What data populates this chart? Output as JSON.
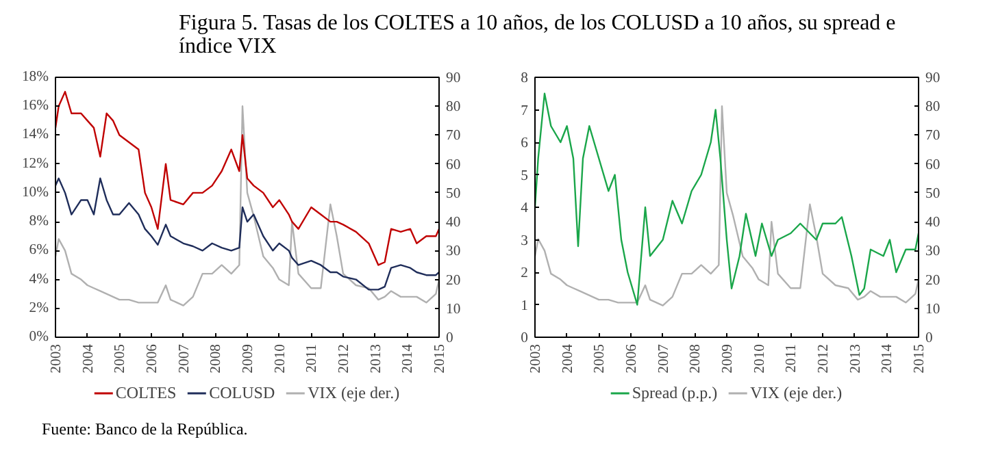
{
  "chart_data": [
    {
      "type": "line",
      "title": "Figura 5. Tasas de los COLTES a 10 años, de los COLUSD a 10 años, su spread e índice VIX",
      "annotations": [
        "Fuente: Banco de la República."
      ],
      "xlim": [
        2003,
        2015
      ],
      "xticks": [
        2003,
        2004,
        2005,
        2006,
        2007,
        2008,
        2009,
        2010,
        2011,
        2012,
        2013,
        2014,
        2015
      ],
      "ylim": [
        0,
        18
      ],
      "yticks": [
        {
          "value": 0,
          "label": "0%"
        },
        {
          "value": 2,
          "label": "2%"
        },
        {
          "value": 4,
          "label": "4%"
        },
        {
          "value": 6,
          "label": "6%"
        },
        {
          "value": 8,
          "label": "8%"
        },
        {
          "value": 10,
          "label": "10%"
        },
        {
          "value": 12,
          "label": "12%"
        },
        {
          "value": 14,
          "label": "14%"
        },
        {
          "value": 16,
          "label": "16%"
        },
        {
          "value": 18,
          "label": "18%"
        }
      ],
      "y2lim": [
        0,
        90
      ],
      "y2ticks": [
        0,
        10,
        20,
        30,
        40,
        50,
        60,
        70,
        80,
        90
      ],
      "grid": false,
      "legend": "bottom",
      "x": [
        2003.0,
        2003.1,
        2003.3,
        2003.5,
        2003.8,
        2004.0,
        2004.2,
        2004.4,
        2004.6,
        2004.8,
        2005.0,
        2005.3,
        2005.6,
        2005.8,
        2006.0,
        2006.2,
        2006.45,
        2006.6,
        2007.0,
        2007.3,
        2007.6,
        2007.9,
        2008.2,
        2008.5,
        2008.75,
        2008.85,
        2009.0,
        2009.2,
        2009.5,
        2009.8,
        2010.0,
        2010.3,
        2010.4,
        2010.6,
        2011.0,
        2011.3,
        2011.6,
        2011.8,
        2012.0,
        2012.4,
        2012.8,
        2013.1,
        2013.3,
        2013.5,
        2013.8,
        2014.1,
        2014.3,
        2014.6,
        2014.9,
        2015.0
      ],
      "series": [
        {
          "name": "COLTES",
          "color": "#c00000",
          "values": [
            14.5,
            16,
            17,
            15.5,
            15.5,
            15,
            14.5,
            12.5,
            15.5,
            15,
            14,
            13.5,
            13,
            10,
            9,
            7.5,
            12,
            9.5,
            9.2,
            10,
            10,
            10.5,
            11.5,
            13,
            11.5,
            14,
            11,
            10.5,
            10,
            9,
            9.5,
            8.5,
            8,
            7.5,
            9,
            8.5,
            8,
            8,
            7.8,
            7.3,
            6.5,
            5,
            5.2,
            7.5,
            7.3,
            7.5,
            6.5,
            7,
            7,
            7.5
          ]
        },
        {
          "name": "COLUSD",
          "color": "#1f2d5a",
          "values": [
            10.5,
            11,
            10,
            8.5,
            9.5,
            9.5,
            8.5,
            11,
            9.5,
            8.5,
            8.5,
            9.3,
            8.5,
            7.5,
            7,
            6.4,
            7.8,
            7,
            6.5,
            6.3,
            6,
            6.5,
            6.2,
            6,
            6.2,
            9,
            8,
            8.5,
            7,
            6,
            6.5,
            6,
            5.5,
            5,
            5.3,
            5,
            4.5,
            4.5,
            4.2,
            4,
            3.3,
            3.3,
            3.5,
            4.8,
            5,
            4.8,
            4.5,
            4.3,
            4.3,
            4.5
          ]
        },
        {
          "name": "VIX (eje der.)",
          "color": "#b0b0b0",
          "axis": "y2",
          "values": [
            28,
            34,
            30,
            22,
            20,
            18,
            17,
            16,
            15,
            14,
            13,
            13,
            12,
            12,
            12,
            12,
            18,
            13,
            11,
            14,
            22,
            22,
            25,
            22,
            25,
            80,
            50,
            42,
            28,
            24,
            20,
            18,
            40,
            22,
            17,
            17,
            46,
            35,
            22,
            18,
            17,
            13,
            14,
            16,
            14,
            14,
            14,
            12,
            15,
            20
          ]
        }
      ]
    },
    {
      "type": "line",
      "xlim": [
        2003,
        2015
      ],
      "xticks": [
        2003,
        2004,
        2005,
        2006,
        2007,
        2008,
        2009,
        2010,
        2011,
        2012,
        2013,
        2014,
        2015
      ],
      "ylim": [
        0,
        8
      ],
      "yticks": [
        0,
        1,
        2,
        3,
        4,
        5,
        6,
        7,
        8
      ],
      "y2lim": [
        0,
        90
      ],
      "y2ticks": [
        0,
        10,
        20,
        30,
        40,
        50,
        60,
        70,
        80,
        90
      ],
      "grid": false,
      "legend": "bottom",
      "series": [
        {
          "name": "Spread (p.p.)",
          "color": "#1aa64a",
          "x": [
            2003.0,
            2003.1,
            2003.3,
            2003.5,
            2003.8,
            2004.0,
            2004.2,
            2004.35,
            2004.5,
            2004.7,
            2005.0,
            2005.3,
            2005.5,
            2005.7,
            2005.9,
            2006.2,
            2006.45,
            2006.6,
            2007.0,
            2007.3,
            2007.6,
            2007.9,
            2008.2,
            2008.5,
            2008.65,
            2008.8,
            2009.0,
            2009.15,
            2009.4,
            2009.6,
            2009.9,
            2010.1,
            2010.4,
            2010.6,
            2011.0,
            2011.3,
            2011.6,
            2011.8,
            2012.0,
            2012.4,
            2012.6,
            2012.9,
            2013.15,
            2013.3,
            2013.5,
            2013.9,
            2014.1,
            2014.3,
            2014.6,
            2014.9,
            2015.0
          ],
          "values": [
            4,
            5.5,
            7.5,
            6.5,
            6,
            6.5,
            5.5,
            2.8,
            5.5,
            6.5,
            5.5,
            4.5,
            5,
            3,
            2,
            1,
            4,
            2.5,
            3,
            4.2,
            3.5,
            4.5,
            5,
            6,
            7,
            5.5,
            3,
            1.5,
            2.5,
            3.8,
            2.5,
            3.5,
            2.5,
            3,
            3.2,
            3.5,
            3.2,
            3,
            3.5,
            3.5,
            3.7,
            2.5,
            1.3,
            1.5,
            2.7,
            2.5,
            3,
            2,
            2.7,
            2.7,
            3.2
          ]
        },
        {
          "name": "VIX (eje der.)",
          "color": "#b0b0b0",
          "axis": "y2",
          "x": [
            2003.0,
            2003.1,
            2003.3,
            2003.5,
            2003.8,
            2004.0,
            2004.2,
            2004.4,
            2004.6,
            2004.8,
            2005.0,
            2005.3,
            2005.6,
            2005.8,
            2006.0,
            2006.2,
            2006.45,
            2006.6,
            2007.0,
            2007.3,
            2007.6,
            2007.9,
            2008.2,
            2008.5,
            2008.75,
            2008.85,
            2009.0,
            2009.2,
            2009.5,
            2009.8,
            2010.0,
            2010.3,
            2010.4,
            2010.6,
            2011.0,
            2011.3,
            2011.6,
            2011.8,
            2012.0,
            2012.4,
            2012.8,
            2013.1,
            2013.3,
            2013.5,
            2013.8,
            2014.1,
            2014.3,
            2014.6,
            2014.9,
            2015.0
          ],
          "values": [
            28,
            34,
            30,
            22,
            20,
            18,
            17,
            16,
            15,
            14,
            13,
            13,
            12,
            12,
            12,
            12,
            18,
            13,
            11,
            14,
            22,
            22,
            25,
            22,
            25,
            80,
            50,
            42,
            28,
            24,
            20,
            18,
            40,
            22,
            17,
            17,
            46,
            35,
            22,
            18,
            17,
            13,
            14,
            16,
            14,
            14,
            14,
            12,
            15,
            20
          ]
        }
      ]
    }
  ]
}
